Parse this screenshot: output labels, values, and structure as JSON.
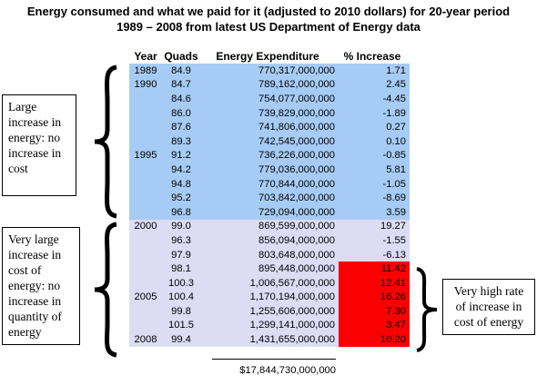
{
  "title": {
    "line1": "Energy consumed and what we paid for it (adjusted to 2010 dollars) for 20-year period",
    "line2": "1989 – 2008 from latest US Department of Energy data"
  },
  "table": {
    "headers": [
      "Year",
      "Quads",
      "Energy Expenditure",
      "% Increase"
    ],
    "rows": [
      {
        "year": "1989",
        "quads": "84.9",
        "expenditure": "770,317,000,000",
        "increase": "1.71"
      },
      {
        "year": "1990",
        "quads": "84.7",
        "expenditure": "789,162,000,000",
        "increase": "2.45"
      },
      {
        "year": "",
        "quads": "84.6",
        "expenditure": "754,077,000,000",
        "increase": "-4.45"
      },
      {
        "year": "",
        "quads": "86.0",
        "expenditure": "739,829,000,000",
        "increase": "-1.89"
      },
      {
        "year": "",
        "quads": "87.6",
        "expenditure": "741,806,000,000",
        "increase": "0.27"
      },
      {
        "year": "",
        "quads": "89.3",
        "expenditure": "742,545,000,000",
        "increase": "0.10"
      },
      {
        "year": "1995",
        "quads": "91.2",
        "expenditure": "736,226,000,000",
        "increase": "-0.85"
      },
      {
        "year": "",
        "quads": "94.2",
        "expenditure": "779,036,000,000",
        "increase": "5.81"
      },
      {
        "year": "",
        "quads": "94.8",
        "expenditure": "770,844,000,000",
        "increase": "-1.05"
      },
      {
        "year": "",
        "quads": "95.2",
        "expenditure": "703,842,000,000",
        "increase": "-8.69"
      },
      {
        "year": "",
        "quads": "96.8",
        "expenditure": "729,094,000,000",
        "increase": "3.59"
      },
      {
        "year": "2000",
        "quads": "99.0",
        "expenditure": "869,599,000,000",
        "increase": "19.27"
      },
      {
        "year": "",
        "quads": "96.3",
        "expenditure": "856,094,000,000",
        "increase": "-1.55"
      },
      {
        "year": "",
        "quads": "97.9",
        "expenditure": "803,648,000,000",
        "increase": "-6.13"
      },
      {
        "year": "",
        "quads": "98.1",
        "expenditure": "895,448,000,000",
        "increase": "11.42"
      },
      {
        "year": "",
        "quads": "100.3",
        "expenditure": "1,006,567,000,000",
        "increase": "12.41"
      },
      {
        "year": "2005",
        "quads": "100.4",
        "expenditure": "1,170,194,000,000",
        "increase": "16.26"
      },
      {
        "year": "",
        "quads": "99.8",
        "expenditure": "1,255,606,000,000",
        "increase": "7.30"
      },
      {
        "year": "",
        "quads": "101.5",
        "expenditure": "1,299,141,000,000",
        "increase": "3.47"
      },
      {
        "year": "2008",
        "quads": "99.4",
        "expenditure": "1,431,655,000,000",
        "increase": "10.20"
      }
    ],
    "total": "$17,844,730,000,000"
  },
  "notes": {
    "left_top": "Large increase in energy: no increase in cost",
    "left_bottom": "Very large increase in cost of energy: no increase in quantity of energy",
    "right": "Very high rate of increase in cost of energy"
  },
  "colors": {
    "period1_bg": "#a6ccf5",
    "period2_bg": "#dcdcf5",
    "highlight": "#fb0000"
  }
}
